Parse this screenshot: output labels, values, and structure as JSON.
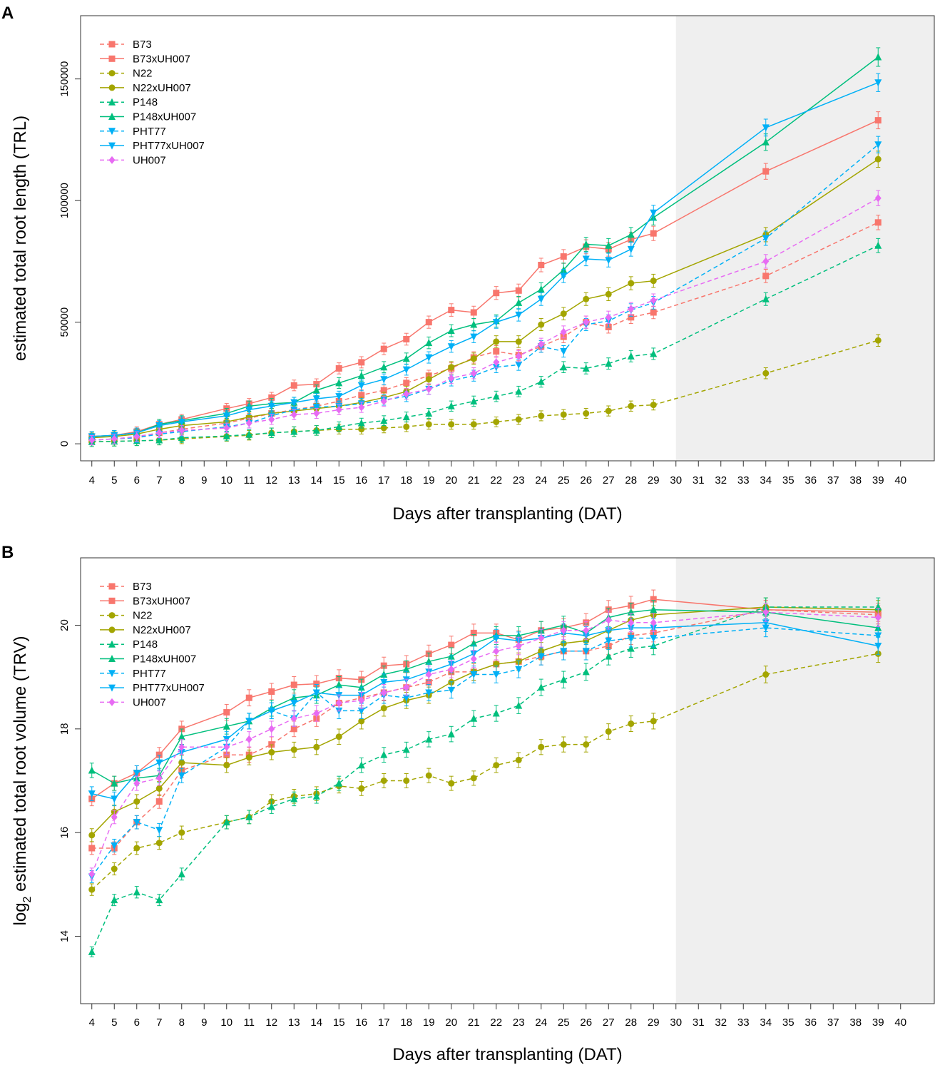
{
  "chart_data": [
    {
      "panel": "A",
      "type": "line",
      "xlabel": "Days after transplanting (DAT)",
      "ylabel": "estimated total root length (TRL)",
      "ylabel_sub": "",
      "ylabel_rest": "",
      "xlim": [
        3.5,
        41.5
      ],
      "ylim": [
        -7000,
        176000
      ],
      "x_ticks": [
        4,
        5,
        6,
        7,
        8,
        9,
        10,
        11,
        12,
        13,
        14,
        15,
        16,
        17,
        18,
        19,
        20,
        21,
        22,
        23,
        24,
        25,
        26,
        27,
        28,
        29,
        30,
        31,
        32,
        33,
        34,
        35,
        36,
        37,
        38,
        39,
        40
      ],
      "y_ticks": [
        0,
        50000,
        100000,
        150000
      ],
      "shaded_region_x": [
        30,
        41.5
      ],
      "x": [
        4,
        5,
        6,
        7,
        8,
        10,
        11,
        12,
        13,
        14,
        15,
        16,
        17,
        18,
        19,
        20,
        21,
        22,
        23,
        24,
        25,
        26,
        27,
        28,
        29,
        34,
        39
      ],
      "series": [
        {
          "name": "B73",
          "color": "#F8766D",
          "dashed": true,
          "marker": "square",
          "values": [
            1500,
            2000,
            2500,
            4500,
            6000,
            8500,
            10500,
            12500,
            14000,
            15500,
            17500,
            20000,
            22000,
            25000,
            28000,
            31000,
            35500,
            38000,
            36500,
            40000,
            44000,
            50000,
            48000,
            52000,
            54000,
            69000,
            91000
          ]
        },
        {
          "name": "B73xUH007",
          "color": "#F8766D",
          "dashed": false,
          "marker": "square",
          "values": [
            3000,
            3500,
            5000,
            8000,
            10000,
            14500,
            16500,
            19000,
            24000,
            24500,
            31000,
            33500,
            39000,
            43000,
            50000,
            55000,
            54000,
            62000,
            63000,
            73500,
            77000,
            81000,
            80000,
            84000,
            86500,
            112000,
            133000
          ]
        },
        {
          "name": "N22",
          "color": "#A3A500",
          "dashed": true,
          "marker": "circle",
          "values": [
            800,
            1000,
            1200,
            1500,
            2000,
            3000,
            3500,
            4500,
            5000,
            5500,
            6000,
            6000,
            6500,
            7000,
            8000,
            8000,
            8000,
            9000,
            10000,
            11500,
            12000,
            12500,
            13500,
            15500,
            16000,
            29000,
            42500
          ]
        },
        {
          "name": "N22xUH007",
          "color": "#A3A500",
          "dashed": false,
          "marker": "circle",
          "values": [
            2500,
            3000,
            4000,
            6000,
            7500,
            9000,
            11000,
            12500,
            13500,
            14500,
            15500,
            17000,
            19000,
            21500,
            26500,
            31500,
            35000,
            42000,
            42000,
            49000,
            53500,
            59500,
            61500,
            66000,
            67000,
            86000,
            117000
          ]
        },
        {
          "name": "P148",
          "color": "#00BF7D",
          "dashed": true,
          "marker": "triangle-up",
          "values": [
            800,
            1000,
            1200,
            1500,
            2500,
            3200,
            3800,
            4500,
            5000,
            5500,
            7000,
            8500,
            9500,
            11000,
            12500,
            15500,
            17500,
            19500,
            21500,
            25500,
            31500,
            31000,
            33000,
            36000,
            37000,
            59500,
            81500
          ]
        },
        {
          "name": "P148xUH007",
          "color": "#00BF7D",
          "dashed": false,
          "marker": "triangle-up",
          "values": [
            3000,
            3500,
            4500,
            8000,
            9500,
            12500,
            15500,
            16500,
            17000,
            22000,
            25000,
            28000,
            31500,
            35000,
            41500,
            46500,
            49000,
            50500,
            58000,
            63500,
            71500,
            82000,
            81500,
            86000,
            93000,
            124000,
            159000
          ]
        },
        {
          "name": "PHT77",
          "color": "#00B0F6",
          "dashed": true,
          "marker": "triangle-down",
          "values": [
            1500,
            2000,
            2500,
            4000,
            5000,
            7000,
            8500,
            11500,
            14000,
            15000,
            15500,
            16500,
            18000,
            19500,
            22500,
            26000,
            28000,
            31500,
            32500,
            40000,
            38000,
            49000,
            50500,
            55000,
            58000,
            84500,
            123000
          ]
        },
        {
          "name": "PHT77xUH007",
          "color": "#00B0F6",
          "dashed": false,
          "marker": "triangle-down",
          "values": [
            3000,
            3500,
            4500,
            7500,
            9000,
            11500,
            14000,
            15500,
            17000,
            18500,
            19500,
            24000,
            26500,
            30500,
            35500,
            40000,
            44000,
            50000,
            53000,
            59500,
            69000,
            76000,
            75500,
            80000,
            95000,
            130000,
            148500
          ]
        },
        {
          "name": "UH007",
          "color": "#E76BF3",
          "dashed": true,
          "marker": "diamond",
          "values": [
            1500,
            2000,
            3000,
            4500,
            5500,
            6500,
            8500,
            10000,
            12000,
            12500,
            14000,
            15000,
            17500,
            20500,
            22500,
            27000,
            29000,
            33500,
            36000,
            41000,
            46000,
            50000,
            52000,
            55500,
            59000,
            75000,
            101000
          ]
        }
      ],
      "legend_position": "top-left"
    },
    {
      "panel": "B",
      "type": "line",
      "xlabel": "Days after transplanting (DAT)",
      "ylabel": "",
      "ylabel_sub": "2",
      "ylabel_rest": " estimated total root volume (TRV)",
      "ylabel_prefix": "log",
      "xlim": [
        3.5,
        41.5
      ],
      "ylim": [
        12.7,
        21.3
      ],
      "x_ticks": [
        4,
        5,
        6,
        7,
        8,
        9,
        10,
        11,
        12,
        13,
        14,
        15,
        16,
        17,
        18,
        19,
        20,
        21,
        22,
        23,
        24,
        25,
        26,
        27,
        28,
        29,
        30,
        31,
        32,
        33,
        34,
        35,
        36,
        37,
        38,
        39,
        40
      ],
      "y_ticks": [
        14,
        16,
        18,
        20
      ],
      "shaded_region_x": [
        30,
        41.5
      ],
      "x": [
        4,
        5,
        6,
        7,
        8,
        10,
        11,
        12,
        13,
        14,
        15,
        16,
        17,
        18,
        19,
        20,
        21,
        22,
        23,
        24,
        25,
        26,
        27,
        28,
        29,
        34,
        39
      ],
      "series": [
        {
          "name": "B73",
          "color": "#F8766D",
          "dashed": true,
          "marker": "square",
          "values": [
            15.7,
            15.7,
            16.2,
            16.6,
            17.2,
            17.5,
            17.5,
            17.7,
            18.0,
            18.2,
            18.5,
            18.6,
            18.7,
            18.8,
            18.9,
            19.1,
            19.1,
            19.25,
            19.3,
            19.4,
            19.5,
            19.5,
            19.6,
            19.8,
            19.85,
            20.3,
            20.2
          ]
        },
        {
          "name": "B73xUH007",
          "color": "#F8766D",
          "dashed": false,
          "marker": "square",
          "values": [
            16.65,
            16.95,
            17.15,
            17.5,
            18.0,
            18.32,
            18.6,
            18.72,
            18.85,
            18.87,
            18.98,
            18.95,
            19.22,
            19.25,
            19.45,
            19.62,
            19.85,
            19.85,
            19.72,
            19.9,
            19.95,
            20.05,
            20.3,
            20.38,
            20.5,
            20.3,
            20.25
          ]
        },
        {
          "name": "N22",
          "color": "#A3A500",
          "dashed": true,
          "marker": "circle",
          "values": [
            14.9,
            15.3,
            15.7,
            15.8,
            16.0,
            16.2,
            16.3,
            16.6,
            16.7,
            16.75,
            16.9,
            16.85,
            17.0,
            17.0,
            17.1,
            16.95,
            17.05,
            17.3,
            17.4,
            17.65,
            17.7,
            17.7,
            17.95,
            18.1,
            18.15,
            19.05,
            19.45
          ]
        },
        {
          "name": "N22xUH007",
          "color": "#A3A500",
          "dashed": false,
          "marker": "circle",
          "values": [
            15.95,
            16.4,
            16.6,
            16.85,
            17.35,
            17.3,
            17.45,
            17.55,
            17.6,
            17.65,
            17.85,
            18.15,
            18.4,
            18.55,
            18.65,
            18.9,
            19.1,
            19.25,
            19.3,
            19.5,
            19.65,
            19.7,
            19.9,
            20.1,
            20.2,
            20.35,
            20.3
          ]
        },
        {
          "name": "P148",
          "color": "#00BF7D",
          "dashed": true,
          "marker": "triangle-up",
          "values": [
            13.7,
            14.7,
            14.85,
            14.7,
            15.2,
            16.2,
            16.3,
            16.5,
            16.65,
            16.7,
            16.95,
            17.3,
            17.5,
            17.6,
            17.8,
            17.9,
            18.2,
            18.3,
            18.45,
            18.8,
            18.95,
            19.1,
            19.4,
            19.55,
            19.6,
            20.35,
            20.35
          ]
        },
        {
          "name": "P148xUH007",
          "color": "#00BF7D",
          "dashed": false,
          "marker": "triangle-up",
          "values": [
            17.2,
            16.95,
            17.05,
            17.1,
            17.85,
            18.05,
            18.15,
            18.4,
            18.6,
            18.65,
            18.85,
            18.8,
            19.05,
            19.15,
            19.3,
            19.4,
            19.65,
            19.8,
            19.8,
            19.9,
            20.0,
            19.85,
            20.15,
            20.25,
            20.3,
            20.25,
            19.95
          ]
        },
        {
          "name": "PHT77",
          "color": "#00B0F6",
          "dashed": true,
          "marker": "triangle-down",
          "values": [
            15.15,
            15.75,
            16.2,
            16.05,
            17.1,
            17.65,
            18.15,
            18.35,
            18.2,
            18.7,
            18.35,
            18.35,
            18.65,
            18.6,
            18.7,
            18.75,
            19.05,
            19.05,
            19.15,
            19.4,
            19.5,
            19.5,
            19.7,
            19.75,
            19.75,
            19.95,
            19.8
          ]
        },
        {
          "name": "PHT77xUH007",
          "color": "#00B0F6",
          "dashed": false,
          "marker": "triangle-down",
          "values": [
            16.75,
            16.65,
            17.15,
            17.35,
            17.55,
            17.8,
            18.15,
            18.35,
            18.5,
            18.7,
            18.65,
            18.65,
            18.9,
            18.95,
            19.1,
            19.25,
            19.45,
            19.75,
            19.7,
            19.75,
            19.85,
            19.8,
            19.9,
            19.95,
            19.95,
            20.05,
            19.6
          ]
        },
        {
          "name": "UH007",
          "color": "#E76BF3",
          "dashed": true,
          "marker": "diamond",
          "values": [
            15.2,
            16.3,
            16.95,
            17.05,
            17.65,
            17.65,
            17.8,
            18.0,
            18.2,
            18.3,
            18.5,
            18.55,
            18.7,
            18.8,
            19.05,
            19.15,
            19.35,
            19.5,
            19.6,
            19.75,
            19.9,
            19.9,
            20.1,
            20.05,
            20.05,
            20.25,
            20.15
          ]
        }
      ],
      "legend_position": "top-left"
    }
  ],
  "legend_labels": [
    "B73",
    "B73xUH007",
    "N22",
    "N22xUH007",
    "P148",
    "P148xUH007",
    "PHT77",
    "PHT77xUH007",
    "UH007"
  ]
}
